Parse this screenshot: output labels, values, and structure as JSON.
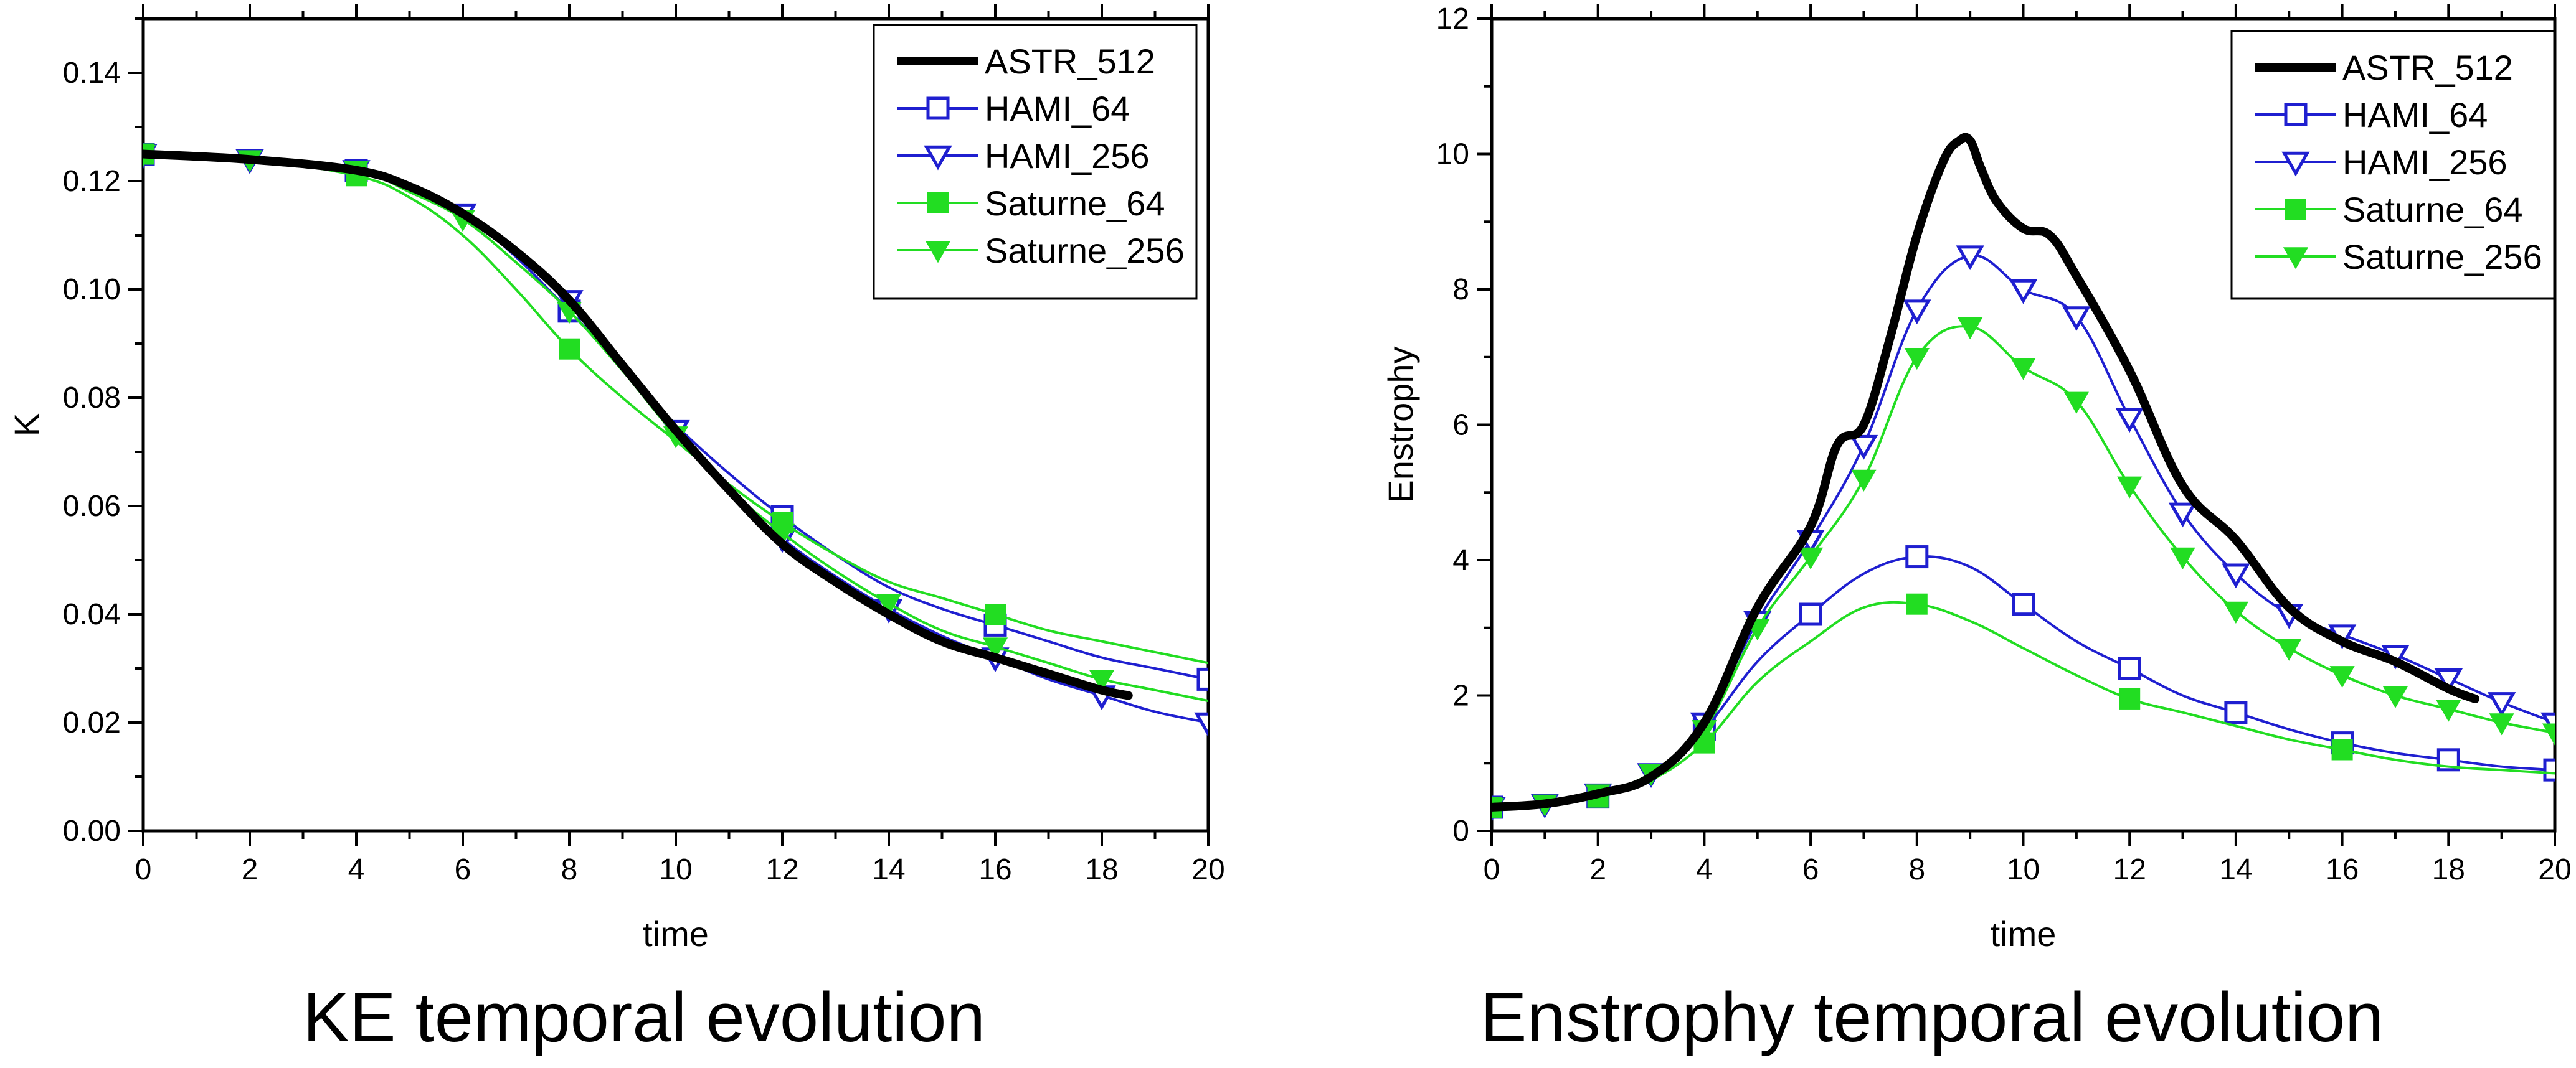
{
  "chart_data": [
    {
      "type": "line",
      "caption": "KE temporal evolution",
      "xlabel": "time",
      "ylabel": "K",
      "xlim": [
        0,
        20
      ],
      "ylim": [
        0,
        0.15
      ],
      "xticks": [
        0,
        2,
        4,
        6,
        8,
        10,
        12,
        14,
        16,
        18,
        20
      ],
      "xtick_labels": [
        "0",
        "2",
        "4",
        "6",
        "8",
        "10",
        "12",
        "14",
        "16",
        "18",
        "20"
      ],
      "yticks": [
        0,
        0.02,
        0.04,
        0.06,
        0.08,
        0.1,
        0.12,
        0.14
      ],
      "ytick_labels": [
        "0.00",
        "0.02",
        "0.04",
        "0.06",
        "0.08",
        "0.10",
        "0.12",
        "0.14"
      ],
      "legend_position": "top-right",
      "series": [
        {
          "name": "ASTR_512",
          "color": "#000000",
          "marker": "none",
          "line_width": "thick",
          "x": [
            0,
            2,
            4,
            5,
            6,
            7,
            8,
            9,
            10,
            11,
            12,
            13,
            14,
            15,
            16,
            17,
            18,
            18.5
          ],
          "y": [
            0.125,
            0.124,
            0.122,
            0.119,
            0.114,
            0.107,
            0.098,
            0.086,
            0.074,
            0.063,
            0.053,
            0.046,
            0.04,
            0.035,
            0.032,
            0.029,
            0.026,
            0.025
          ]
        },
        {
          "name": "HAMI_64",
          "color": "#1f1fd0",
          "marker": "square-open",
          "x": [
            0,
            2,
            4,
            5,
            6,
            7,
            8,
            9,
            10,
            11,
            12,
            13,
            14,
            15,
            16,
            17,
            18,
            19,
            20
          ],
          "y": [
            0.125,
            0.124,
            0.122,
            0.119,
            0.114,
            0.106,
            0.096,
            0.086,
            0.075,
            0.066,
            0.058,
            0.051,
            0.045,
            0.041,
            0.038,
            0.035,
            0.032,
            0.03,
            0.028
          ],
          "marker_x": [
            0,
            4,
            8,
            12,
            16,
            20
          ]
        },
        {
          "name": "HAMI_256",
          "color": "#1f1fd0",
          "marker": "triangle-down-open",
          "x": [
            0,
            2,
            4,
            5,
            6,
            7,
            8,
            9,
            10,
            11,
            12,
            13,
            14,
            15,
            16,
            17,
            18,
            19,
            20
          ],
          "y": [
            0.125,
            0.124,
            0.122,
            0.119,
            0.114,
            0.107,
            0.098,
            0.086,
            0.074,
            0.063,
            0.054,
            0.047,
            0.041,
            0.036,
            0.032,
            0.028,
            0.025,
            0.022,
            0.02
          ],
          "marker_x": [
            0,
            2,
            4,
            6,
            8,
            10,
            12,
            14,
            16,
            18,
            20
          ]
        },
        {
          "name": "Saturne_64",
          "color": "#22dd22",
          "marker": "square-filled",
          "x": [
            0,
            2,
            4,
            5,
            6,
            7,
            8,
            9,
            10,
            11,
            12,
            13,
            14,
            15,
            16,
            17,
            18,
            19,
            20
          ],
          "y": [
            0.125,
            0.124,
            0.121,
            0.117,
            0.11,
            0.1,
            0.089,
            0.08,
            0.072,
            0.064,
            0.057,
            0.051,
            0.046,
            0.043,
            0.04,
            0.037,
            0.035,
            0.033,
            0.031
          ],
          "marker_x": [
            0,
            4,
            8,
            12,
            16
          ]
        },
        {
          "name": "Saturne_256",
          "color": "#22dd22",
          "marker": "triangle-down-filled",
          "x": [
            0,
            2,
            4,
            5,
            6,
            7,
            8,
            9,
            10,
            11,
            12,
            13,
            14,
            15,
            16,
            17,
            18,
            19,
            20
          ],
          "y": [
            0.125,
            0.124,
            0.122,
            0.118,
            0.113,
            0.105,
            0.096,
            0.085,
            0.073,
            0.063,
            0.055,
            0.048,
            0.042,
            0.037,
            0.034,
            0.031,
            0.028,
            0.026,
            0.024
          ],
          "marker_x": [
            0,
            2,
            4,
            6,
            8,
            10,
            12,
            14,
            16,
            18
          ]
        }
      ]
    },
    {
      "type": "line",
      "caption": "Enstrophy temporal evolution",
      "xlabel": "time",
      "ylabel": "Enstrophy",
      "xlim": [
        0,
        20
      ],
      "ylim": [
        0,
        12
      ],
      "xticks": [
        0,
        2,
        4,
        6,
        8,
        10,
        12,
        14,
        16,
        18,
        20
      ],
      "xtick_labels": [
        "0",
        "2",
        "4",
        "6",
        "8",
        "10",
        "12",
        "14",
        "16",
        "18",
        "20"
      ],
      "yticks": [
        0,
        2,
        4,
        6,
        8,
        10,
        12
      ],
      "ytick_labels": [
        "0",
        "2",
        "4",
        "6",
        "8",
        "10",
        "12"
      ],
      "legend_position": "top-right",
      "series": [
        {
          "name": "ASTR_512",
          "color": "#000000",
          "marker": "none",
          "line_width": "thick",
          "x": [
            0,
            1,
            2,
            3,
            4,
            5,
            6,
            6.5,
            7,
            7.5,
            8,
            8.5,
            8.8,
            9,
            9.2,
            9.5,
            10,
            10.5,
            11,
            12,
            13,
            14,
            15,
            16,
            17,
            18,
            18.5
          ],
          "y": [
            0.35,
            0.4,
            0.55,
            0.8,
            1.6,
            3.3,
            4.5,
            5.7,
            6.0,
            7.3,
            8.8,
            9.9,
            10.2,
            10.2,
            9.8,
            9.3,
            8.9,
            8.8,
            8.2,
            6.8,
            5.1,
            4.3,
            3.3,
            2.8,
            2.5,
            2.1,
            1.95
          ]
        },
        {
          "name": "HAMI_64",
          "color": "#1f1fd0",
          "marker": "square-open",
          "x": [
            0,
            1,
            2,
            3,
            4,
            5,
            6,
            7,
            8,
            9,
            10,
            11,
            12,
            13,
            14,
            15,
            16,
            17,
            18,
            19,
            20
          ],
          "y": [
            0.35,
            0.4,
            0.5,
            0.8,
            1.5,
            2.5,
            3.2,
            3.8,
            4.05,
            3.9,
            3.35,
            2.8,
            2.4,
            2.0,
            1.75,
            1.5,
            1.3,
            1.15,
            1.05,
            0.95,
            0.9
          ],
          "marker_x": [
            0,
            2,
            4,
            6,
            8,
            10,
            12,
            14,
            16,
            18,
            20
          ]
        },
        {
          "name": "HAMI_256",
          "color": "#1f1fd0",
          "marker": "triangle-down-open",
          "x": [
            0,
            1,
            2,
            3,
            4,
            5,
            6,
            7,
            8,
            9,
            10,
            11,
            12,
            13,
            14,
            15,
            16,
            17,
            18,
            19,
            20
          ],
          "y": [
            0.35,
            0.4,
            0.55,
            0.85,
            1.6,
            3.1,
            4.3,
            5.7,
            7.7,
            8.5,
            8.0,
            7.6,
            6.1,
            4.7,
            3.8,
            3.2,
            2.9,
            2.6,
            2.25,
            1.9,
            1.6
          ],
          "marker_x": [
            0,
            1,
            2,
            3,
            4,
            5,
            6,
            7,
            8,
            9,
            10,
            11,
            12,
            13,
            14,
            15,
            16,
            17,
            18,
            19,
            20
          ]
        },
        {
          "name": "Saturne_64",
          "color": "#22dd22",
          "marker": "square-filled",
          "x": [
            0,
            1,
            2,
            3,
            4,
            5,
            6,
            7,
            8,
            9,
            10,
            11,
            12,
            13,
            14,
            15,
            16,
            17,
            18,
            19,
            20
          ],
          "y": [
            0.35,
            0.4,
            0.5,
            0.75,
            1.3,
            2.2,
            2.8,
            3.3,
            3.35,
            3.1,
            2.7,
            2.3,
            1.95,
            1.75,
            1.55,
            1.35,
            1.2,
            1.05,
            0.95,
            0.9,
            0.85
          ],
          "marker_x": [
            0,
            2,
            4,
            8,
            12,
            16
          ]
        },
        {
          "name": "Saturne_256",
          "color": "#22dd22",
          "marker": "triangle-down-filled",
          "x": [
            0,
            1,
            2,
            3,
            4,
            5,
            6,
            7,
            8,
            9,
            10,
            11,
            12,
            13,
            14,
            15,
            16,
            17,
            18,
            19,
            20
          ],
          "y": [
            0.35,
            0.4,
            0.55,
            0.85,
            1.5,
            3.0,
            4.05,
            5.2,
            7.0,
            7.45,
            6.85,
            6.35,
            5.1,
            4.05,
            3.25,
            2.7,
            2.3,
            2.0,
            1.8,
            1.6,
            1.45
          ],
          "marker_x": [
            0,
            1,
            2,
            3,
            4,
            5,
            6,
            7,
            8,
            9,
            10,
            11,
            12,
            13,
            14,
            15,
            16,
            17,
            18,
            19,
            20
          ]
        }
      ]
    }
  ]
}
